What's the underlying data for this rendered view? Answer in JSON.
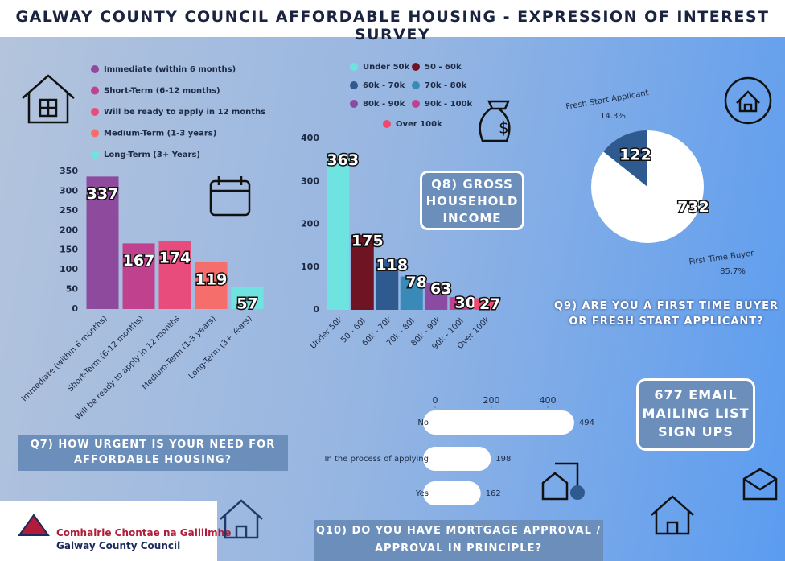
{
  "header": {
    "title": "GALWAY COUNTY COUNCIL AFFORDABLE HOUSING - EXPRESSION OF INTEREST SURVEY"
  },
  "callout": {
    "text": "677 EMAIL MAILING LIST SIGN UPS"
  },
  "logo": {
    "irish": "Comhairle Chontae na Gaillimhe",
    "english": "Galway County Council"
  },
  "chart_data": [
    {
      "type": "bar",
      "title": "Q7) HOW URGENT IS YOUR NEED FOR AFFORDABLE HOUSING?",
      "categories": [
        "Immediate (within 6 months)",
        "Short-Term (6-12 months)",
        "Will be ready to apply in 12 months",
        "Medium-Term (1-3 years)",
        "Long-Term (3+ Years)"
      ],
      "values": [
        337,
        167,
        174,
        119,
        57
      ],
      "colors": [
        "#8e4b9e",
        "#c0418e",
        "#e84c7d",
        "#f56e6b",
        "#6fe3e0"
      ],
      "ylim": [
        0,
        350
      ],
      "yticks": [
        0,
        50,
        100,
        150,
        200,
        250,
        300,
        350
      ],
      "legend": "top-left"
    },
    {
      "type": "bar",
      "title": "Q8) GROSS HOUSEHOLD INCOME",
      "categories": [
        "Under 50k",
        "50 - 60k",
        "60k - 70k",
        "70k - 80k",
        "80k - 90k",
        "90k - 100k",
        "Over 100k"
      ],
      "values": [
        363,
        175,
        118,
        78,
        63,
        30,
        27
      ],
      "colors": [
        "#6fe3e0",
        "#6e1423",
        "#2f5a8f",
        "#3a8ab8",
        "#8b4ba3",
        "#c0418e",
        "#ef4a6e"
      ],
      "ylim": [
        0,
        400
      ],
      "yticks": [
        0,
        100,
        200,
        300,
        400
      ],
      "legend": "top"
    },
    {
      "type": "pie",
      "title": "Q9) ARE YOU A FIRST TIME BUYER OR FRESH START APPLICANT?",
      "categories": [
        "First Time Buyer",
        "Fresh Start Applicant"
      ],
      "values": [
        732,
        122
      ],
      "percent_labels": [
        "85.7%",
        "14.3%"
      ],
      "colors": [
        "#ffffff",
        "#2f5a8f"
      ]
    },
    {
      "type": "bar",
      "horizontal": true,
      "title": "Q10) DO YOU HAVE MORTGAGE APPROVAL / APPROVAL IN PRINCIPLE?",
      "categories": [
        "No",
        "In the process of applying",
        "Yes"
      ],
      "values": [
        494,
        198,
        162
      ],
      "color": "#ffffff",
      "xlim": [
        0,
        600
      ],
      "xticks": [
        0,
        200,
        400
      ]
    }
  ]
}
